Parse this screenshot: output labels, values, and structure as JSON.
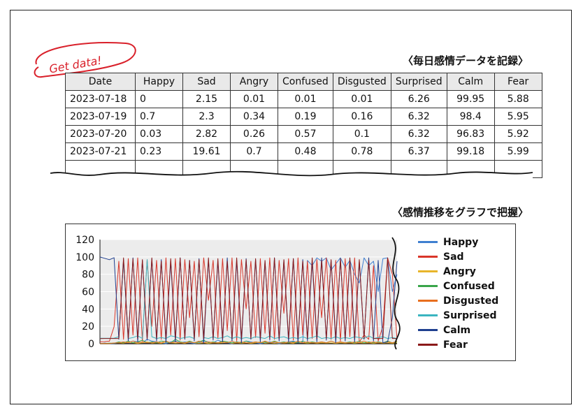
{
  "stamp_text": "Get data!",
  "table_caption": "〈毎日感情データを記録〉",
  "chart_caption": "〈感情推移をグラフで把握〉",
  "table": {
    "headers": [
      "Date",
      "Happy",
      "Sad",
      "Angry",
      "Confused",
      "Disgusted",
      "Surprised",
      "Calm",
      "Fear"
    ],
    "rows": [
      [
        "2023-07-18",
        "0",
        "2.15",
        "0.01",
        "0.01",
        "0.01",
        "6.26",
        "99.95",
        "5.88"
      ],
      [
        "2023-07-19",
        "0.7",
        "2.3",
        "0.34",
        "0.19",
        "0.16",
        "6.32",
        "98.4",
        "5.95"
      ],
      [
        "2023-07-20",
        "0.03",
        "2.82",
        "0.26",
        "0.57",
        "0.1",
        "6.32",
        "96.83",
        "5.92"
      ],
      [
        "2023-07-21",
        "0.23",
        "19.61",
        "0.7",
        "0.48",
        "0.78",
        "6.37",
        "99.18",
        "5.99"
      ]
    ]
  },
  "colors": {
    "stamp": "#d9202a",
    "plot_bg": "#ececec",
    "header_bg": "#e9e9e9"
  },
  "chart_data": {
    "type": "line",
    "ylim": [
      0,
      120
    ],
    "yticks": [
      0,
      20,
      40,
      60,
      80,
      100,
      120
    ],
    "grid": true,
    "legend_position": "right",
    "series": [
      {
        "name": "Happy",
        "color": "#3f7fd0",
        "values": [
          0,
          0.7,
          0.03,
          0.23,
          1,
          2,
          1,
          3,
          2,
          1,
          5,
          3,
          2,
          1,
          0,
          2,
          3,
          1,
          2,
          1,
          0,
          1,
          3,
          2,
          1,
          4,
          2,
          1,
          0,
          2,
          1,
          3,
          2,
          1,
          0,
          1,
          2,
          1,
          0,
          1,
          2,
          3,
          1,
          2,
          96,
          90,
          99,
          95,
          99,
          85,
          92,
          99,
          88,
          96,
          80,
          70,
          99,
          90,
          95,
          60,
          98,
          99,
          60,
          80
        ]
      },
      {
        "name": "Sad",
        "color": "#d9362a",
        "values": [
          2.15,
          2.3,
          2.82,
          19.61,
          95,
          5,
          98,
          10,
          99,
          3,
          97,
          20,
          96,
          5,
          99,
          10,
          98,
          4,
          97,
          30,
          95,
          8,
          99,
          50,
          96,
          6,
          98,
          15,
          99,
          3,
          97,
          40,
          95,
          7,
          98,
          12,
          99,
          5,
          96,
          35,
          98,
          4,
          99,
          10,
          95,
          6,
          97,
          30,
          99,
          5,
          96,
          3,
          98,
          8,
          99,
          2,
          10,
          5,
          90,
          3,
          20,
          99,
          80,
          5
        ]
      },
      {
        "name": "Angry",
        "color": "#e8b52a",
        "values": [
          0.01,
          0.34,
          0.26,
          0.7,
          1,
          0.5,
          2,
          1,
          0.3,
          1,
          2,
          0.5,
          1,
          0.4,
          2,
          1,
          0.6,
          1,
          0.3,
          2,
          1,
          0.5,
          1,
          0.2,
          1,
          0.6,
          1,
          2,
          0.4,
          1,
          0.5,
          1,
          0.3,
          1,
          2,
          0.5,
          1,
          0.4,
          1,
          0.6,
          1,
          0.3,
          2,
          1,
          0.5,
          1,
          0.4,
          1,
          0.6,
          1,
          0.3,
          1,
          0.5,
          1,
          0.4,
          1,
          0.6,
          1,
          0.3,
          1,
          0.5,
          1,
          0.4,
          1
        ]
      },
      {
        "name": "Confused",
        "color": "#3aa54a",
        "values": [
          0.01,
          0.19,
          0.57,
          0.48,
          2,
          1,
          3,
          1,
          2,
          4,
          1,
          2,
          1,
          3,
          2,
          1,
          5,
          2,
          1,
          3,
          1,
          2,
          4,
          1,
          2,
          1,
          3,
          2,
          1,
          2,
          1,
          3,
          1,
          2,
          1,
          2,
          1,
          3,
          1,
          2,
          1,
          2,
          1,
          3,
          1,
          2,
          1,
          2,
          1,
          3,
          1,
          2,
          1,
          2,
          1,
          3,
          1,
          2,
          1,
          2,
          1,
          3,
          1,
          2
        ]
      },
      {
        "name": "Disgusted",
        "color": "#e86f1e",
        "values": [
          0.01,
          0.16,
          0.1,
          0.78,
          1,
          2,
          1,
          3,
          1,
          2,
          1,
          1,
          2,
          1,
          3,
          1,
          2,
          1,
          1,
          2,
          1,
          3,
          1,
          2,
          1,
          1,
          2,
          1,
          3,
          1,
          2,
          1,
          1,
          2,
          1,
          3,
          1,
          2,
          1,
          1,
          2,
          1,
          3,
          1,
          2,
          1,
          1,
          2,
          1,
          3,
          1,
          2,
          1,
          1,
          2,
          1,
          3,
          1,
          2,
          1,
          1,
          2,
          1,
          3
        ]
      },
      {
        "name": "Surprised",
        "color": "#3bb5c0",
        "values": [
          6.26,
          6.32,
          6.32,
          6.37,
          8,
          95,
          6,
          7,
          9,
          6,
          97,
          8,
          6,
          7,
          6,
          9,
          8,
          6,
          7,
          8,
          6,
          96,
          7,
          6,
          8,
          6,
          7,
          9,
          6,
          8,
          6,
          7,
          6,
          8,
          7,
          6,
          9,
          6,
          7,
          8,
          6,
          7,
          6,
          8,
          6,
          7,
          9,
          6,
          7,
          6,
          8,
          6,
          7,
          6,
          8,
          7,
          6,
          9,
          6,
          7,
          8,
          6,
          7,
          6
        ]
      },
      {
        "name": "Calm",
        "color": "#1f3f8f",
        "values": [
          99.95,
          98.4,
          96.83,
          99.18,
          5,
          97,
          3,
          99,
          2,
          96,
          4,
          98,
          3,
          97,
          1,
          95,
          2,
          99,
          5,
          96,
          3,
          98,
          1,
          97,
          4,
          95,
          2,
          99,
          3,
          96,
          1,
          98,
          5,
          97,
          2,
          95,
          4,
          99,
          3,
          96,
          2,
          98,
          1,
          97,
          3,
          95,
          2,
          99,
          4,
          96,
          1,
          98,
          3,
          97,
          2,
          95,
          5,
          99,
          3,
          96,
          1,
          2,
          30,
          95
        ]
      },
      {
        "name": "Fear",
        "color": "#8b1a1a",
        "values": [
          5.88,
          5.95,
          5.92,
          5.99,
          6,
          99,
          6,
          98,
          6,
          97,
          6,
          99,
          6,
          95,
          6,
          98,
          6,
          99,
          6,
          96,
          6,
          97,
          6,
          99,
          6,
          98,
          6,
          95,
          6,
          99,
          6,
          97,
          6,
          98,
          6,
          96,
          6,
          99,
          6,
          97,
          6,
          98,
          6,
          95,
          6,
          99,
          6,
          96,
          6,
          97,
          6,
          98,
          6,
          99,
          6,
          97,
          6,
          96,
          6,
          6,
          6,
          99,
          6,
          6
        ]
      }
    ]
  }
}
